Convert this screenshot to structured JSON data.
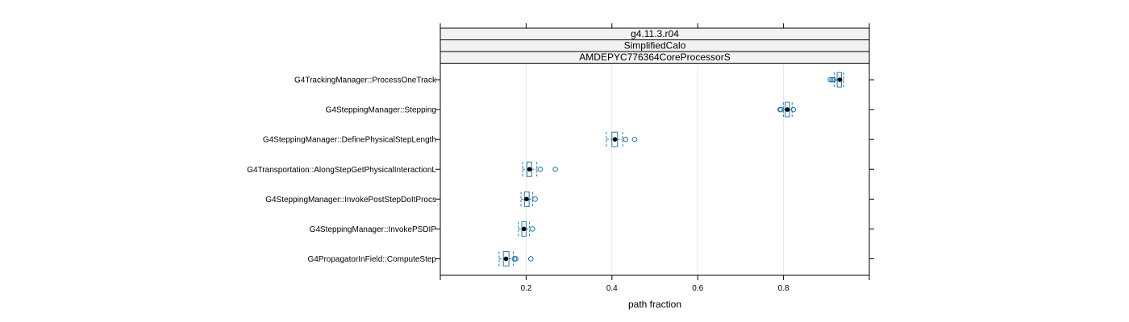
{
  "chart_data": {
    "type": "boxplot",
    "panel_strips": [
      "g4.11.3.r04",
      "SimplifiedCalo",
      "AMDEPYC776364CoreProcessorS"
    ],
    "xlabel": "path fraction",
    "xlim": [
      0.0,
      1.0
    ],
    "xticks": [
      0.2,
      0.4,
      0.6,
      0.8
    ],
    "grid": "vertical",
    "colors": {
      "box": "#1f7bb0",
      "median": "#000000",
      "grid": "#e6e6e6",
      "strip": "#f2f2f2"
    },
    "categories": [
      {
        "name": "G4TrackingManager::ProcessOneTrack",
        "whisker_low": 0.918,
        "q1": 0.925,
        "median": 0.931,
        "q3": 0.935,
        "whisker_high": 0.94,
        "outliers": [
          0.909,
          0.913,
          0.917
        ]
      },
      {
        "name": "G4SteppingManager::Stepping",
        "whisker_low": 0.8,
        "q1": 0.804,
        "median": 0.809,
        "q3": 0.814,
        "whisker_high": 0.82,
        "outliers": [
          0.792,
          0.794,
          0.823
        ]
      },
      {
        "name": "G4SteppingManager::DefinePhysicalStepLength",
        "whisker_low": 0.387,
        "q1": 0.4,
        "median": 0.407,
        "q3": 0.413,
        "whisker_high": 0.425,
        "outliers": [
          0.432,
          0.453
        ]
      },
      {
        "name": "G4Transportation::AlongStepGetPhysicalInteractionL",
        "whisker_low": 0.192,
        "q1": 0.202,
        "median": 0.208,
        "q3": 0.213,
        "whisker_high": 0.225,
        "outliers": [
          0.233,
          0.268
        ]
      },
      {
        "name": "G4SteppingManager::InvokePostStepDoItProcs",
        "whisker_low": 0.188,
        "q1": 0.196,
        "median": 0.201,
        "q3": 0.207,
        "whisker_high": 0.215,
        "outliers": [
          0.221
        ]
      },
      {
        "name": "G4SteppingManager::InvokePSDIP",
        "whisker_low": 0.182,
        "q1": 0.19,
        "median": 0.195,
        "q3": 0.2,
        "whisker_high": 0.208,
        "outliers": [
          0.215
        ]
      },
      {
        "name": "G4PropagatorInField::ComputeStep",
        "whisker_low": 0.137,
        "q1": 0.147,
        "median": 0.153,
        "q3": 0.16,
        "whisker_high": 0.17,
        "outliers": [
          0.173,
          0.176,
          0.211
        ]
      }
    ]
  }
}
